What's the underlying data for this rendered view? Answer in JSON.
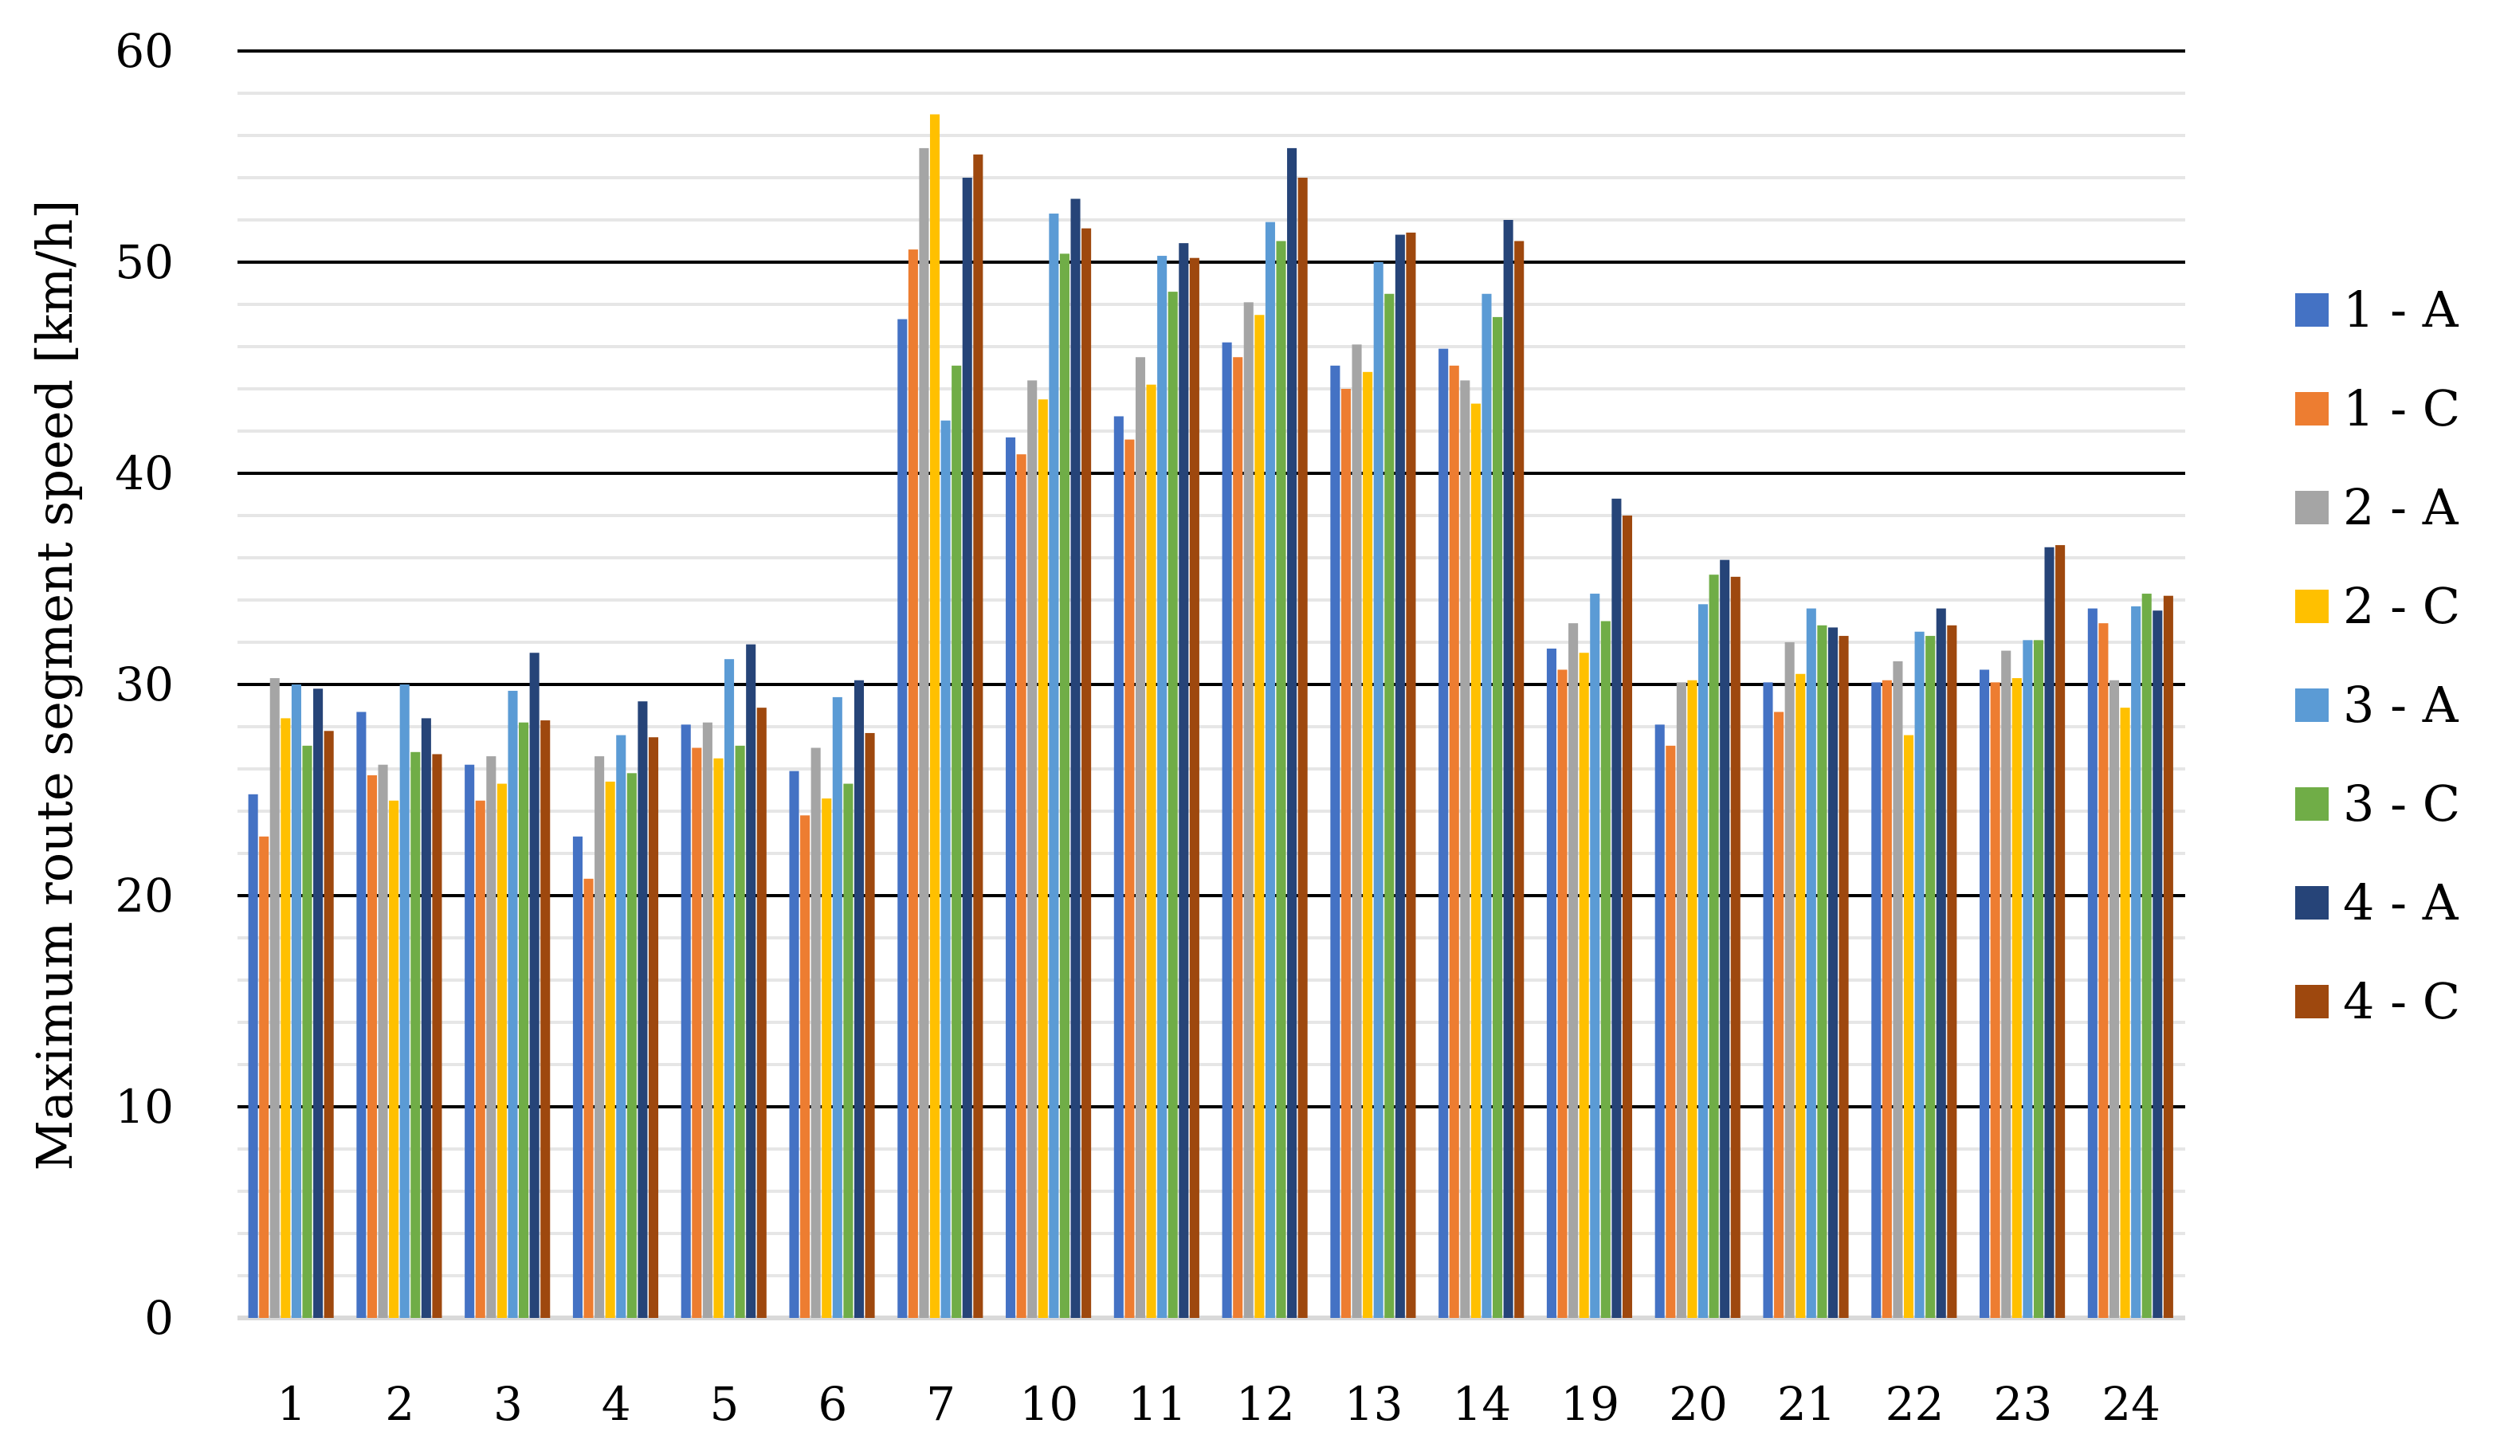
{
  "chart_data": {
    "type": "bar",
    "title": "",
    "xlabel": "",
    "ylabel": "Maximum route segment speed [km/h]",
    "ylim": [
      0,
      60
    ],
    "yticks": [
      0,
      10,
      20,
      30,
      40,
      50,
      60
    ],
    "grid": {
      "major": true,
      "minor": true,
      "minor_step": 2
    },
    "legend_position": "right",
    "categories": [
      "1",
      "2",
      "3",
      "4",
      "5",
      "6",
      "7",
      "10",
      "11",
      "12",
      "13",
      "14",
      "19",
      "20",
      "21",
      "22",
      "23",
      "24"
    ],
    "series": [
      {
        "name": "1 - A",
        "color": "#4472C4",
        "values": [
          24.8,
          28.7,
          26.2,
          22.8,
          28.1,
          25.9,
          47.3,
          41.7,
          42.7,
          46.2,
          45.1,
          45.9,
          31.7,
          28.1,
          30.1,
          30.1,
          30.7,
          33.6
        ]
      },
      {
        "name": "1 - C",
        "color": "#ED7D31",
        "values": [
          22.8,
          25.7,
          24.5,
          20.8,
          27.0,
          23.8,
          50.6,
          40.9,
          41.6,
          45.5,
          44.0,
          45.1,
          30.7,
          27.1,
          28.7,
          30.2,
          30.1,
          32.9
        ]
      },
      {
        "name": "2 - A",
        "color": "#A5A5A5",
        "values": [
          30.3,
          26.2,
          26.6,
          26.6,
          28.2,
          27.0,
          55.4,
          44.4,
          45.5,
          48.1,
          46.1,
          44.4,
          32.9,
          30.1,
          32.0,
          31.1,
          31.6,
          30.2
        ]
      },
      {
        "name": "2 - C",
        "color": "#FFC000",
        "values": [
          28.4,
          24.5,
          25.3,
          25.4,
          26.5,
          24.6,
          57.0,
          43.5,
          44.2,
          47.5,
          44.8,
          43.3,
          31.5,
          30.2,
          30.5,
          27.6,
          30.3,
          28.9
        ]
      },
      {
        "name": "3 - A",
        "color": "#5B9BD5",
        "values": [
          30.0,
          30.0,
          29.7,
          27.6,
          31.2,
          29.4,
          42.5,
          52.3,
          50.3,
          51.9,
          50.0,
          48.5,
          34.3,
          33.8,
          33.6,
          32.5,
          32.1,
          33.7
        ]
      },
      {
        "name": "3 - C",
        "color": "#70AD47",
        "values": [
          27.1,
          26.8,
          28.2,
          25.8,
          27.1,
          25.3,
          45.1,
          50.4,
          48.6,
          51.0,
          48.5,
          47.4,
          33.0,
          35.2,
          32.8,
          32.3,
          32.1,
          34.3
        ]
      },
      {
        "name": "4 - A",
        "color": "#264478",
        "values": [
          29.8,
          28.4,
          31.5,
          29.2,
          31.9,
          30.2,
          54.0,
          53.0,
          50.9,
          55.4,
          51.3,
          52.0,
          38.8,
          35.9,
          32.7,
          33.6,
          36.5,
          33.5
        ]
      },
      {
        "name": "4 - C",
        "color": "#9E480E",
        "values": [
          27.8,
          26.7,
          28.3,
          27.5,
          28.9,
          27.7,
          55.1,
          51.6,
          50.2,
          54.0,
          51.4,
          51.0,
          38.0,
          35.1,
          32.3,
          32.8,
          36.6,
          34.2
        ]
      }
    ]
  }
}
